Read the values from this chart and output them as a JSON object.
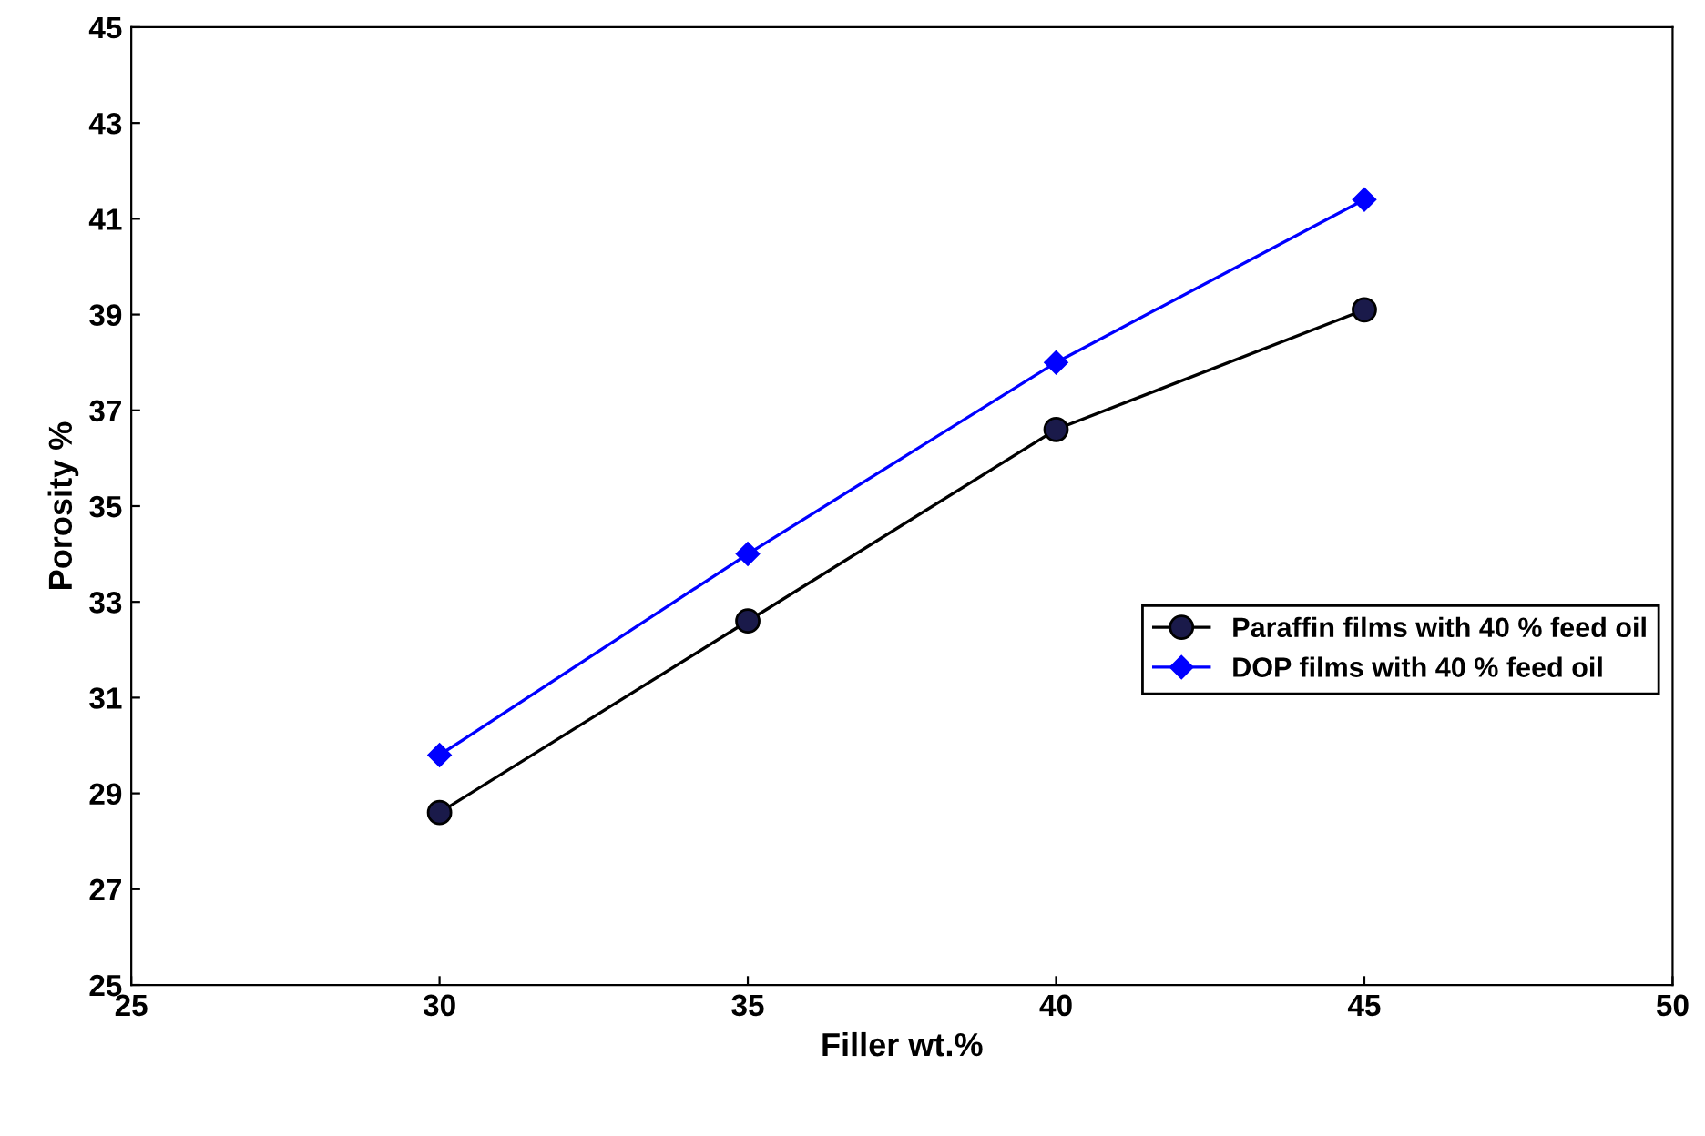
{
  "chart_data": {
    "type": "line",
    "xlabel": "Filler wt.%",
    "ylabel": "Porosity %",
    "x": [
      30,
      35,
      40,
      45
    ],
    "series": [
      {
        "name": "Paraffin films with 40 % feed oil",
        "color": "#000000",
        "marker": "circle",
        "values": [
          28.6,
          32.6,
          36.6,
          39.1
        ]
      },
      {
        "name": "DOP films with 40 % feed oil",
        "color": "#0000ff",
        "marker": "diamond",
        "values": [
          29.8,
          34.0,
          38.0,
          41.4
        ]
      }
    ],
    "xlim": [
      25,
      50
    ],
    "xticks": [
      25,
      30,
      35,
      40,
      45,
      50
    ],
    "ylim": [
      25,
      45
    ],
    "yticks": [
      25,
      27,
      29,
      31,
      33,
      35,
      37,
      39,
      41,
      43,
      45
    ],
    "grid": false,
    "legend": "right",
    "line_style": "solid"
  }
}
